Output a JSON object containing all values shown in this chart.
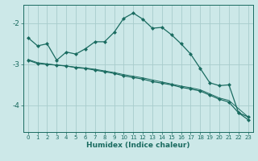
{
  "xlabel": "Humidex (Indice chaleur)",
  "bg_color": "#cce8e8",
  "line_color": "#1a6b60",
  "grid_color": "#a8cccc",
  "x": [
    0,
    1,
    2,
    3,
    4,
    5,
    6,
    7,
    8,
    9,
    10,
    11,
    12,
    13,
    14,
    15,
    16,
    17,
    18,
    19,
    20,
    21,
    22,
    23
  ],
  "curve1": [
    -2.35,
    -2.55,
    -2.5,
    -2.9,
    -2.7,
    -2.75,
    -2.62,
    -2.45,
    -2.45,
    -2.22,
    -1.88,
    -1.75,
    -1.9,
    -2.12,
    -2.1,
    -2.28,
    -2.5,
    -2.75,
    -3.1,
    -3.45,
    -3.52,
    -3.5,
    -4.18,
    -4.28
  ],
  "curve2": [
    -2.9,
    -2.98,
    -3.0,
    -3.02,
    -3.04,
    -3.08,
    -3.1,
    -3.14,
    -3.18,
    -3.22,
    -3.28,
    -3.32,
    -3.36,
    -3.42,
    -3.46,
    -3.5,
    -3.56,
    -3.6,
    -3.65,
    -3.75,
    -3.85,
    -3.92,
    -4.18,
    -4.35
  ],
  "curve3": [
    -2.88,
    -2.96,
    -2.99,
    -3.02,
    -3.04,
    -3.07,
    -3.09,
    -3.12,
    -3.16,
    -3.2,
    -3.25,
    -3.29,
    -3.33,
    -3.38,
    -3.43,
    -3.48,
    -3.53,
    -3.57,
    -3.62,
    -3.72,
    -3.82,
    -3.88,
    -4.08,
    -4.28
  ],
  "ylim": [
    -4.65,
    -1.55
  ],
  "yticks": [
    -4,
    -3,
    -2
  ],
  "xlim": [
    -0.5,
    23.5
  ],
  "xtick_fontsize": 5.0,
  "ytick_fontsize": 6.5,
  "xlabel_fontsize": 6.5
}
